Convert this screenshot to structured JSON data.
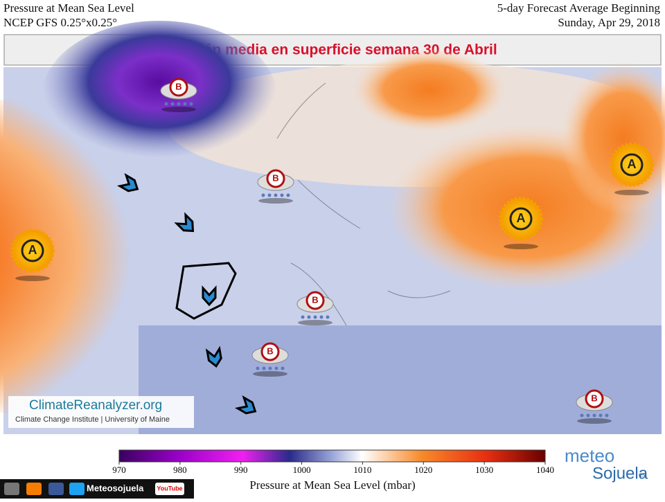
{
  "header": {
    "title": "Pressure at Mean Sea Level",
    "model": "NCEP GFS 0.25°x0.25°",
    "forecast": "5-day Forecast Average Beginning",
    "date": "Sunday, Apr 29, 2018"
  },
  "banner": "Presión media en superficie semana 30 de Abril",
  "map": {
    "pressure_systems": [
      "B",
      "A",
      "B",
      "B",
      "B",
      "A",
      "A",
      "B"
    ]
  },
  "credit": {
    "site": "ClimateReanalyzer.org",
    "institute": "Climate Change Institute | University of Maine"
  },
  "colorbar": {
    "label": "Pressure at Mean Sea Level (mbar)",
    "range": [
      970,
      1040
    ],
    "ticks": [
      970,
      980,
      990,
      1000,
      1010,
      1020,
      1030,
      1040
    ]
  },
  "brand": {
    "social": "Meteosojuela",
    "youtube": "YouTube",
    "logo_top": "meteo",
    "logo_bottom": "Sojuela",
    "logo_domain": "es"
  }
}
